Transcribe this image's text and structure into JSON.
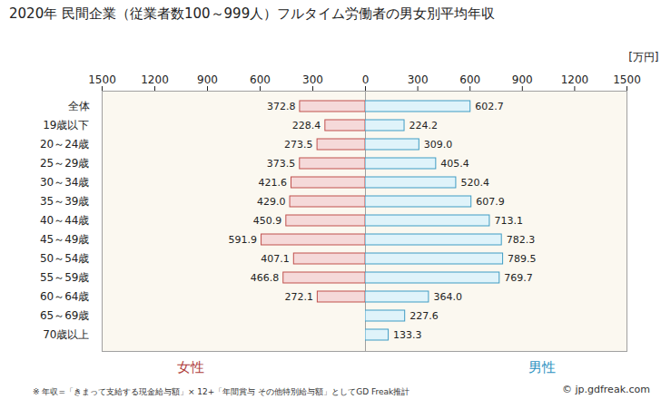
{
  "chart_data": [
    {
      "type": "bar",
      "orientation": "horizontal",
      "title": "2020年 民間企業（従業者数100～999人）フルタイム労働者の男女別平均年収",
      "categories": [
        "全体",
        "19歳以下",
        "20～24歳",
        "25～29歳",
        "30～34歳",
        "35～39歳",
        "40～44歳",
        "45～49歳",
        "50～54歳",
        "55～59歳",
        "60～64歳",
        "65～69歳",
        "70歳以上"
      ],
      "series": [
        {
          "name": "女性",
          "color": "#f5d9d9",
          "values": [
            372.8,
            228.4,
            273.5,
            373.5,
            421.6,
            429.0,
            450.9,
            591.9,
            407.1,
            466.8,
            272.1,
            null,
            null
          ],
          "value_labels": [
            "372.8",
            "228.4",
            "273.5",
            "373.5",
            "421.6",
            "429.0",
            "450.9",
            "591.9",
            "407.1",
            "466.8",
            "272.1",
            null,
            null
          ]
        }
      ],
      "xlim": [
        1500,
        0
      ],
      "xticks": [
        1500,
        1200,
        900,
        600,
        300,
        0
      ],
      "data_labels": true
    },
    {
      "type": "bar",
      "orientation": "horizontal",
      "xlabel": "[万円]",
      "categories": [
        "全体",
        "19歳以下",
        "20～24歳",
        "25～29歳",
        "30～34歳",
        "35～39歳",
        "40～44歳",
        "45～49歳",
        "50～54歳",
        "55～59歳",
        "60～64歳",
        "65～69歳",
        "70歳以上"
      ],
      "series": [
        {
          "name": "男性",
          "color": "#dff3fa",
          "values": [
            602.7,
            224.2,
            309.0,
            405.4,
            520.4,
            607.9,
            713.1,
            782.3,
            789.5,
            769.7,
            364.0,
            227.6,
            133.3
          ],
          "value_labels": [
            "602.7",
            "224.2",
            "309.0",
            "405.4",
            "520.4",
            "607.9",
            "713.1",
            "782.3",
            "789.5",
            "769.7",
            "364.0",
            "227.6",
            "133.3"
          ]
        }
      ],
      "xlim": [
        0,
        1500
      ],
      "xticks": [
        0,
        300,
        600,
        900,
        1200,
        1500
      ],
      "data_labels": true,
      "annotations": [
        "※ 年収=「きまって支給する現金給与額」× 12+「年間賞与 その他特別給与額」としてGD Freak推計",
        "© jp.gdfreak.com"
      ]
    }
  ]
}
